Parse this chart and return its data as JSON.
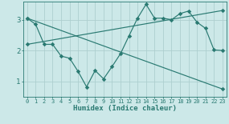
{
  "xlabel": "Humidex (Indice chaleur)",
  "bg_color": "#cce8e8",
  "line_color": "#2a7a72",
  "grid_color": "#aecfcf",
  "xlim": [
    -0.5,
    23.5
  ],
  "ylim": [
    0.5,
    3.6
  ],
  "yticks": [
    1,
    2,
    3
  ],
  "xticks": [
    0,
    1,
    2,
    3,
    4,
    5,
    6,
    7,
    8,
    9,
    10,
    11,
    12,
    13,
    14,
    15,
    16,
    17,
    18,
    19,
    20,
    21,
    22,
    23
  ],
  "line1_x": [
    0,
    1,
    2,
    3,
    4,
    5,
    6,
    7,
    8,
    9,
    10,
    11,
    12,
    13,
    14,
    15,
    16,
    17,
    18,
    19,
    20,
    21,
    22,
    23
  ],
  "line1_y": [
    3.05,
    2.85,
    2.2,
    2.2,
    1.82,
    1.75,
    1.32,
    0.82,
    1.35,
    1.08,
    1.48,
    1.9,
    2.48,
    3.05,
    3.5,
    3.05,
    3.05,
    3.0,
    3.2,
    3.28,
    2.92,
    2.72,
    2.02,
    2.0
  ],
  "line2_x": [
    0,
    23
  ],
  "line2_y": [
    3.05,
    0.75
  ],
  "line3_x": [
    0,
    23
  ],
  "line3_y": [
    2.2,
    3.3
  ]
}
